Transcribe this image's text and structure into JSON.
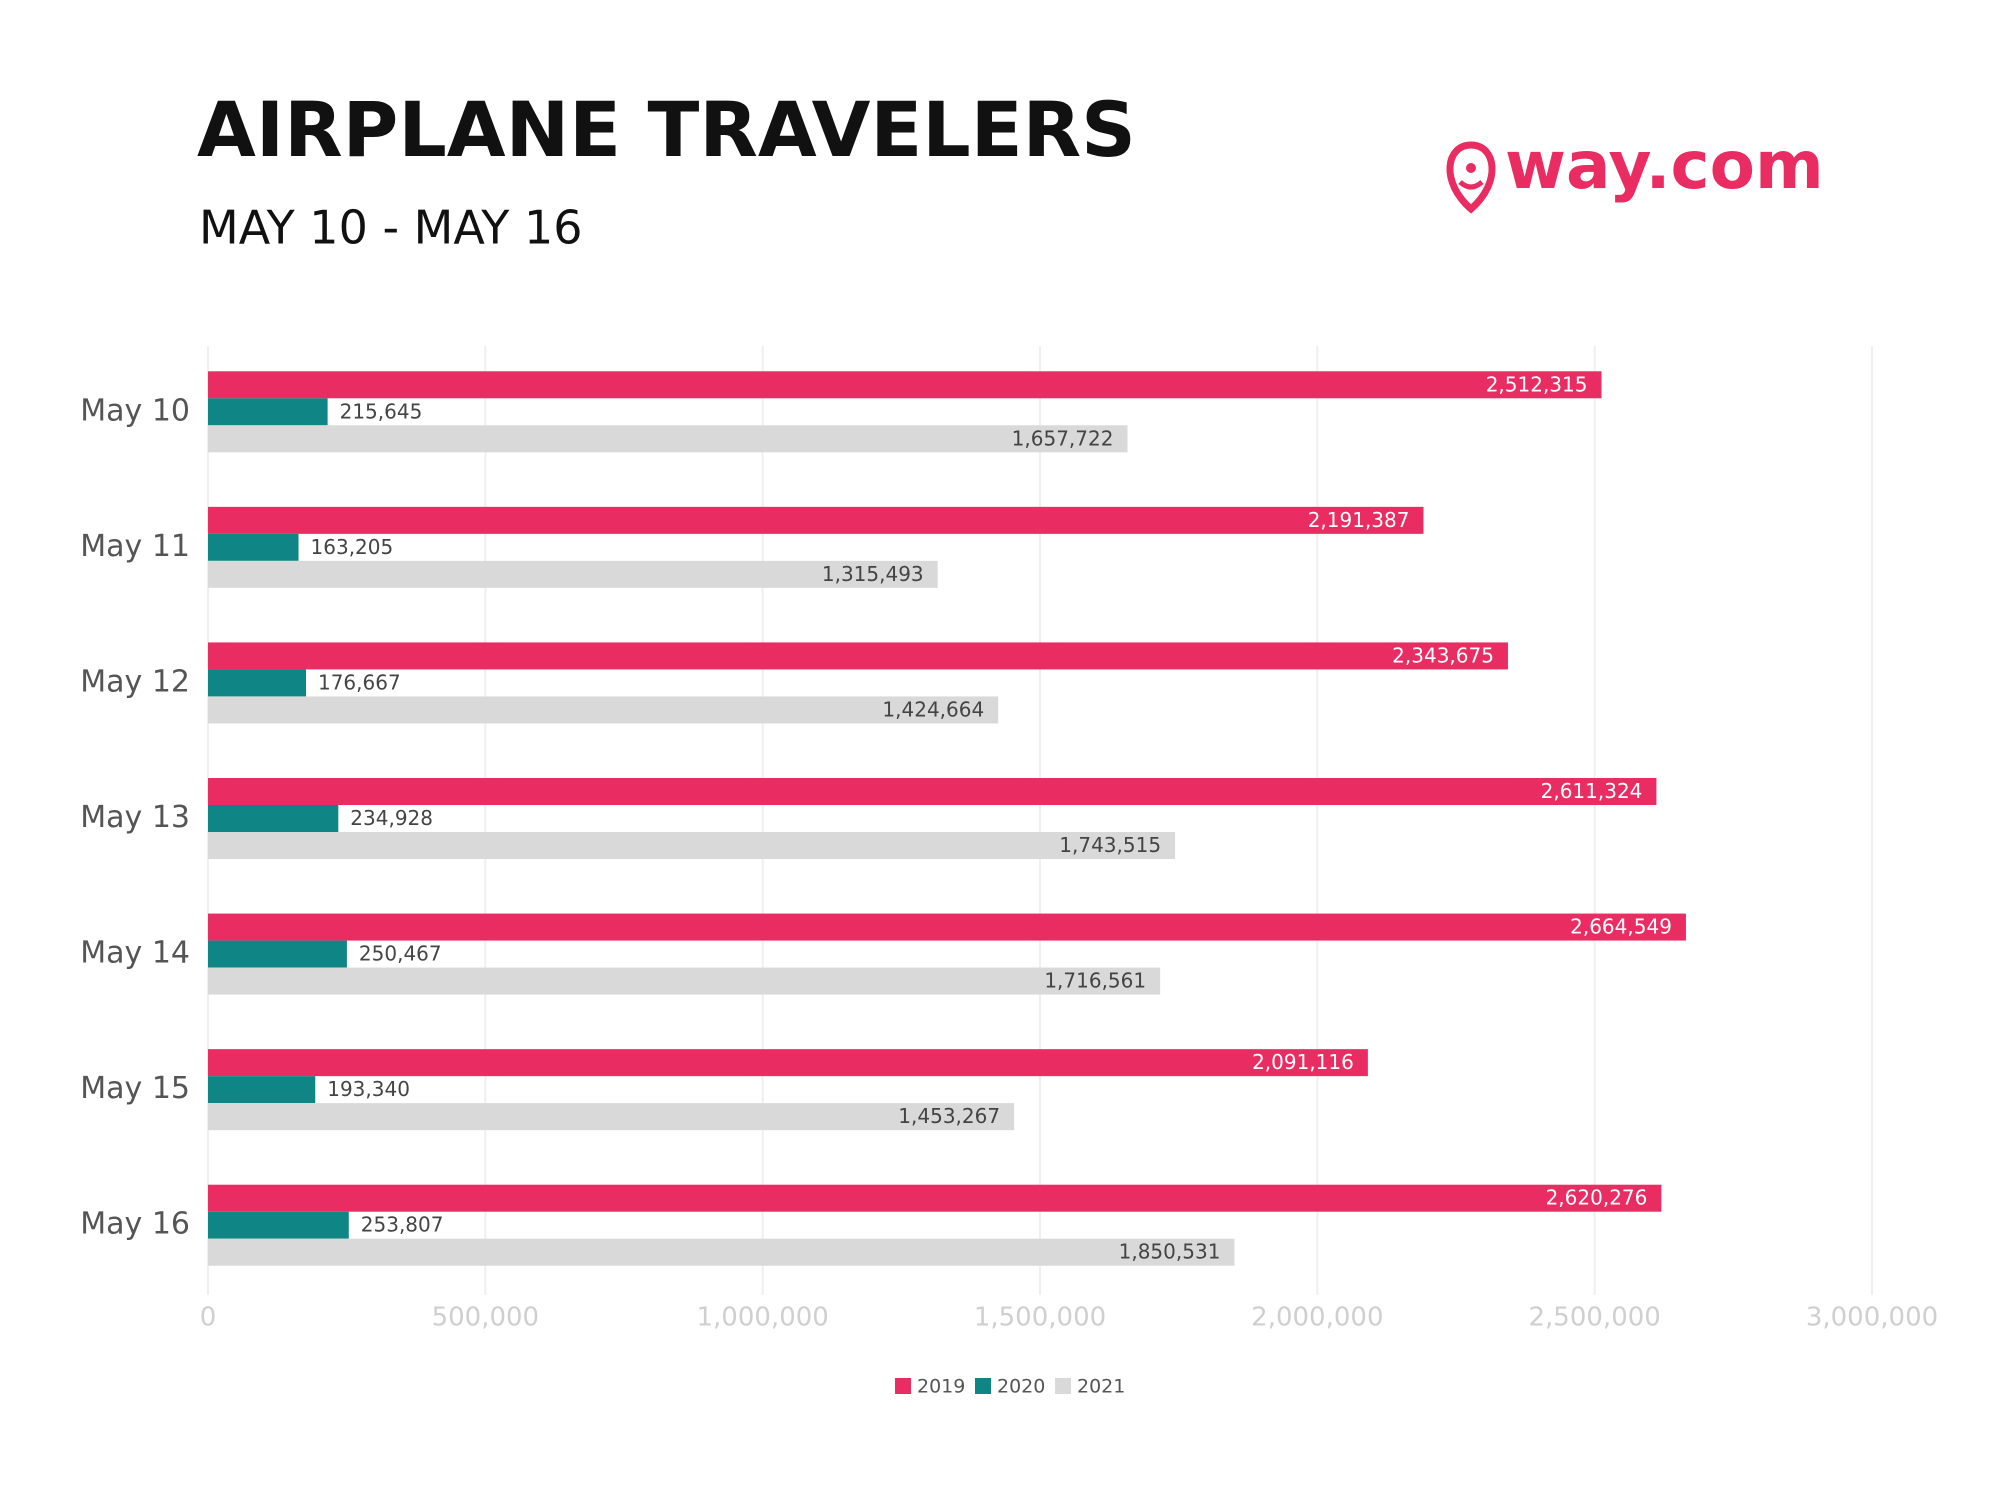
{
  "chart_data": {
    "type": "hbar",
    "title": "AIRPLANE TRAVELERS",
    "subtitle": "MAY 10 - MAY 16",
    "logo": "way.com",
    "categories": [
      "May 10",
      "May 11",
      "May 12",
      "May 13",
      "May 14",
      "May 15",
      "May 16"
    ],
    "series": [
      {
        "name": "2019",
        "color": "#e92d62",
        "values": [
          2512315,
          2191387,
          2343675,
          2611324,
          2664549,
          2091116,
          2620276
        ],
        "value_labels": [
          "2,512,315",
          "2,191,387",
          "2,343,675",
          "2,611,324",
          "2,664,549",
          "2,091,116",
          "2,620,276"
        ]
      },
      {
        "name": "2020",
        "color": "#0f8585",
        "values": [
          215645,
          163205,
          176667,
          234928,
          250467,
          193340,
          253807
        ],
        "value_labels": [
          "215,645",
          "163,205",
          "176,667",
          "234,928",
          "250,467",
          "193,340",
          "253,807"
        ]
      },
      {
        "name": "2021",
        "color": "#d9d9d9",
        "values": [
          1657722,
          1315493,
          1424664,
          1743515,
          1716561,
          1453267,
          1850531
        ],
        "value_labels": [
          "1,657,722",
          "1,315,493",
          "1,424,664",
          "1,743,515",
          "1,716,561",
          "1,453,267",
          "1,850,531"
        ]
      }
    ],
    "xlim": [
      0,
      3000000
    ],
    "xticks": [
      0,
      {
        "value": 500000,
        "label": "500,000"
      },
      {
        "value": 1000000,
        "label": "1,000,000"
      },
      {
        "value": 1500000,
        "label": "1,500,000"
      },
      {
        "value": 2000000,
        "label": "2,000,000"
      },
      {
        "value": 2500000,
        "label": "2,500,000"
      },
      {
        "value": 3000000,
        "label": "3,000,000"
      }
    ],
    "grid": true,
    "legend": "bottom"
  }
}
